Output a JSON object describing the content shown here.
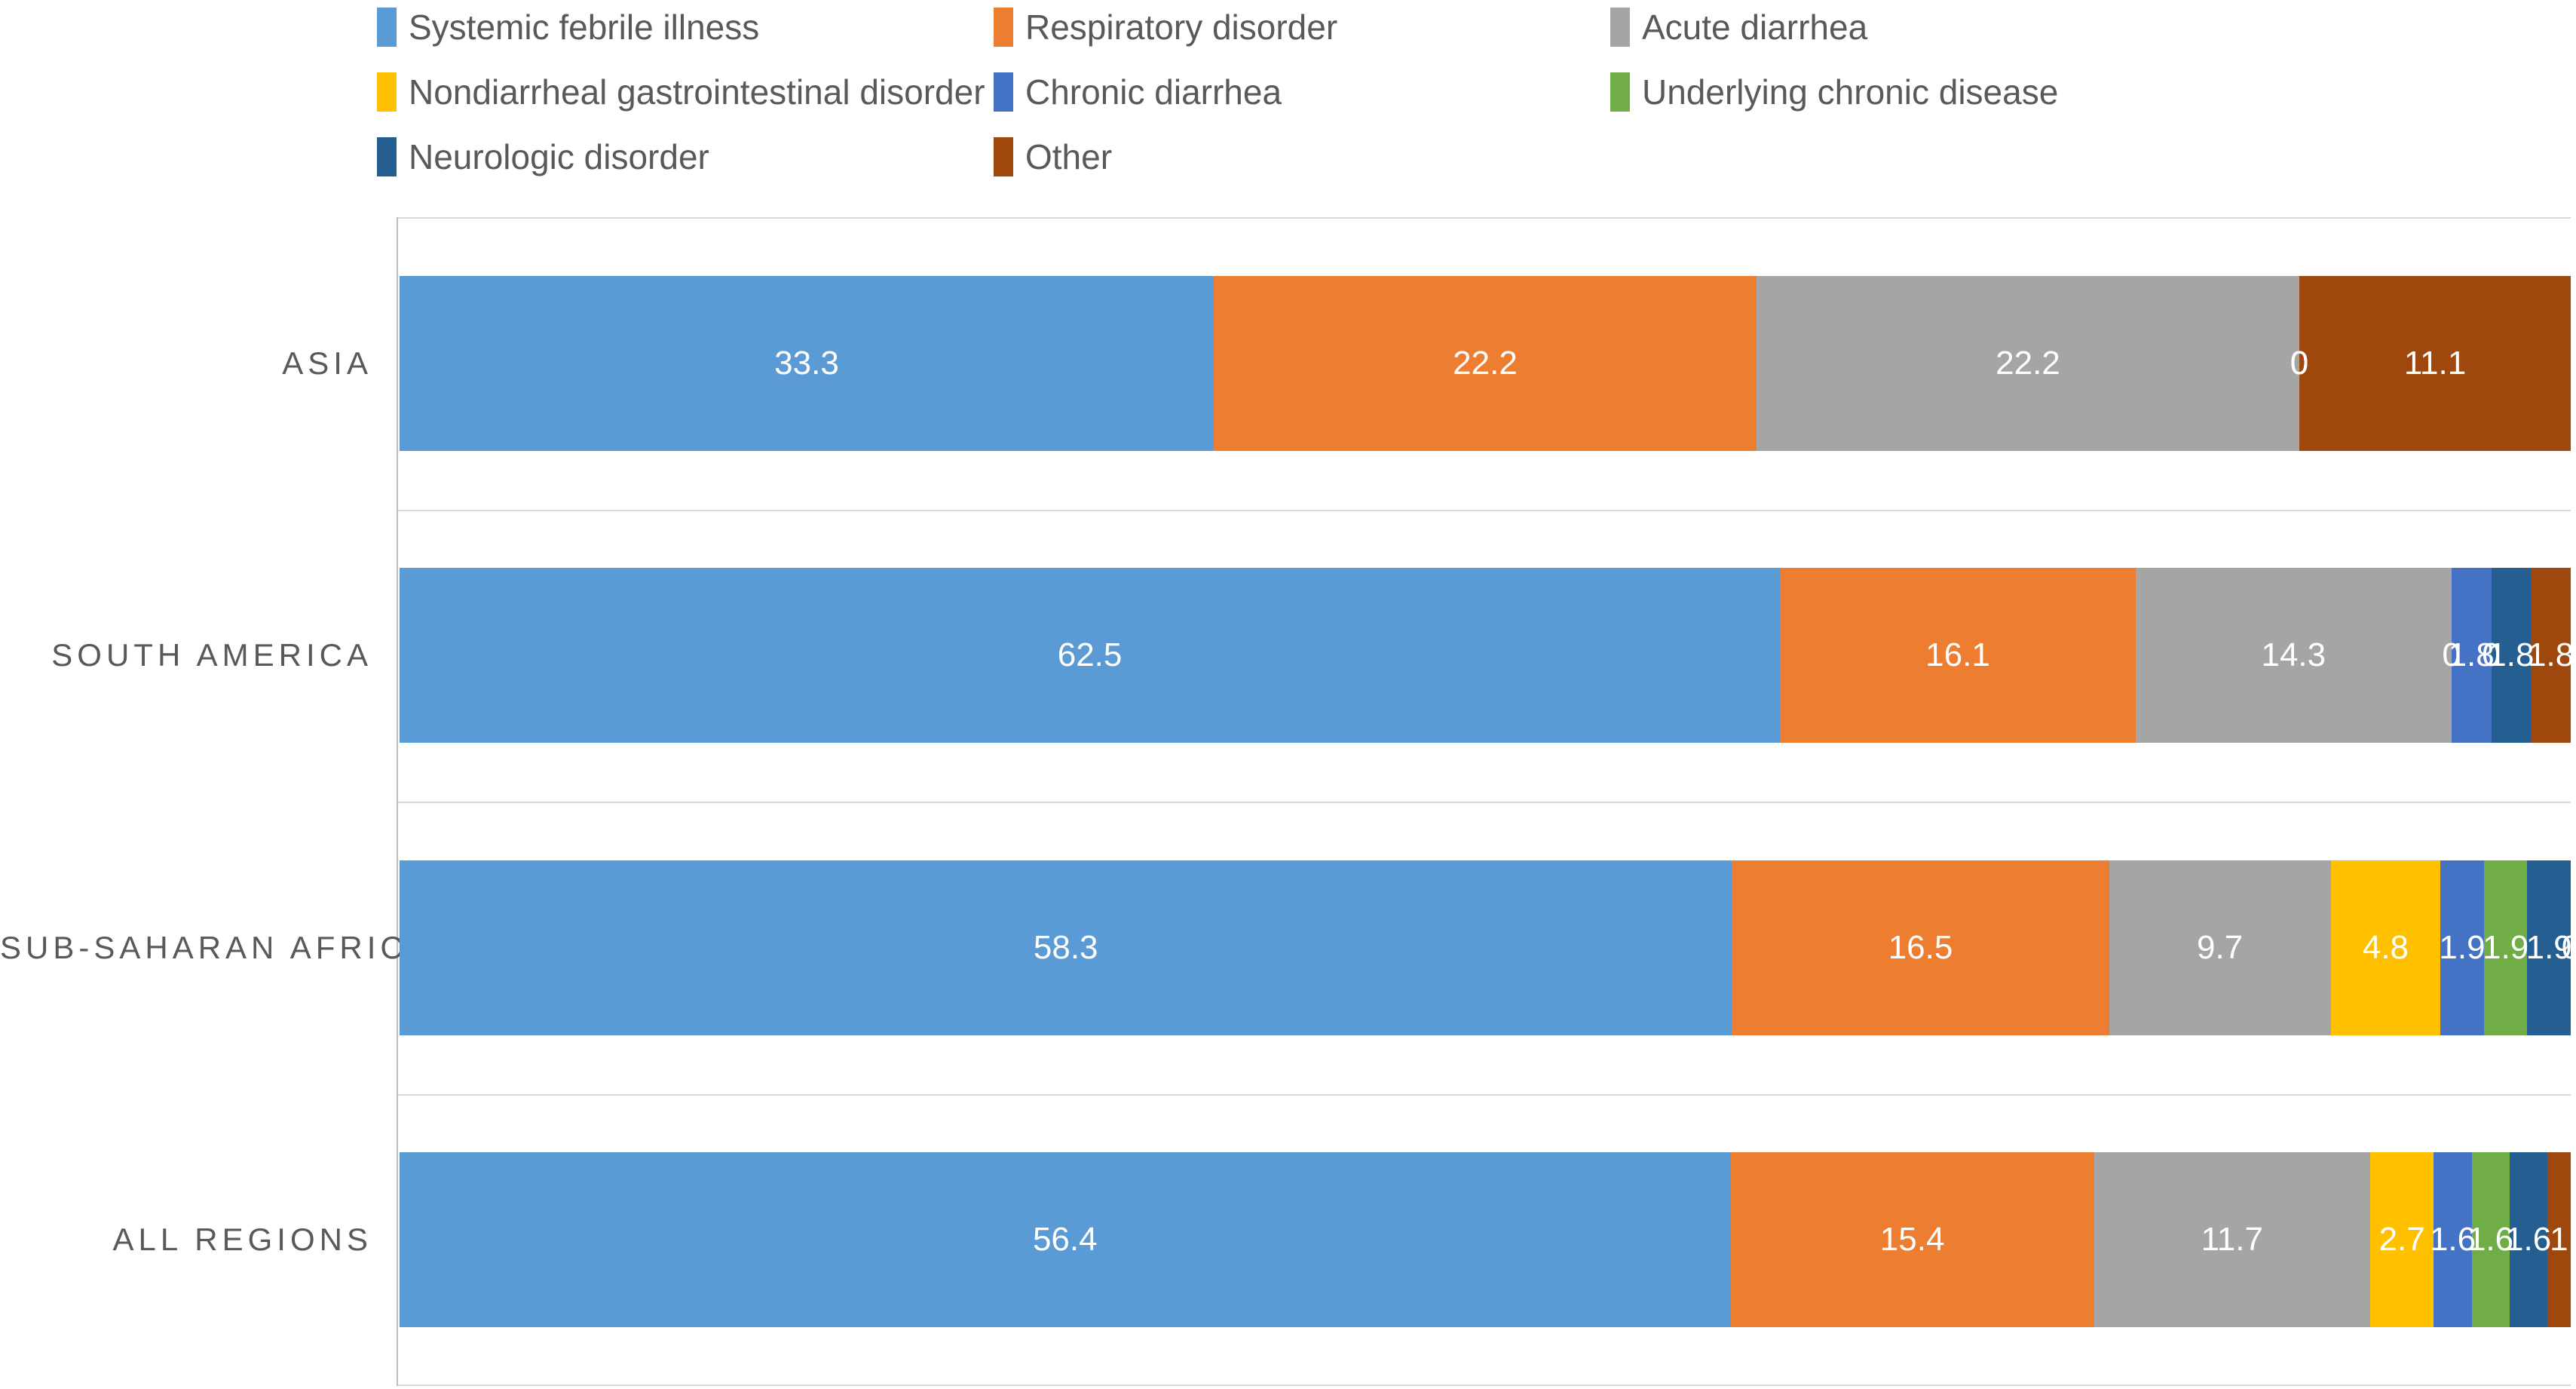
{
  "chart_data": {
    "type": "bar",
    "orientation": "horizontal",
    "stacked": "100%",
    "legend_position": "top",
    "legend_columns": 3,
    "grid": "category-band lines",
    "categories": [
      "ASIA",
      "SOUTH AMERICA",
      "SUB-SAHARAN AFRICA",
      "ALL REGIONS"
    ],
    "series": [
      {
        "name": "Systemic febrile illness",
        "color": "#5B9BD5",
        "values": [
          33.3,
          62.5,
          58.3,
          56.4
        ]
      },
      {
        "name": "Respiratory disorder",
        "color": "#ED7D31",
        "values": [
          22.2,
          16.1,
          16.5,
          15.4
        ]
      },
      {
        "name": "Acute diarrhea",
        "color": "#A5A5A5",
        "values": [
          22.2,
          14.3,
          9.7,
          11.7
        ]
      },
      {
        "name": "Nondiarrheal gastrointestinal disorder",
        "color": "#FFC000",
        "values": [
          0,
          0,
          4.8,
          2.7
        ]
      },
      {
        "name": "Chronic diarrhea",
        "color": "#4472C4",
        "values": [
          0,
          1.8,
          1.9,
          1.6
        ]
      },
      {
        "name": "Underlying chronic disease",
        "color": "#70AD47",
        "values": [
          0,
          0,
          1.9,
          1.6
        ]
      },
      {
        "name": "Neurologic disorder",
        "color": "#255E91",
        "values": [
          0,
          1.8,
          1.9,
          1.6
        ]
      },
      {
        "name": "Other",
        "color": "#9E480E",
        "values": [
          11.1,
          1.8,
          0,
          1
        ]
      }
    ],
    "data_label_color": "#FFFFFF",
    "axis_text_color": "#595959",
    "gridline_color": "#D9D9D9",
    "axis_line_color": "#BFBFBF"
  }
}
